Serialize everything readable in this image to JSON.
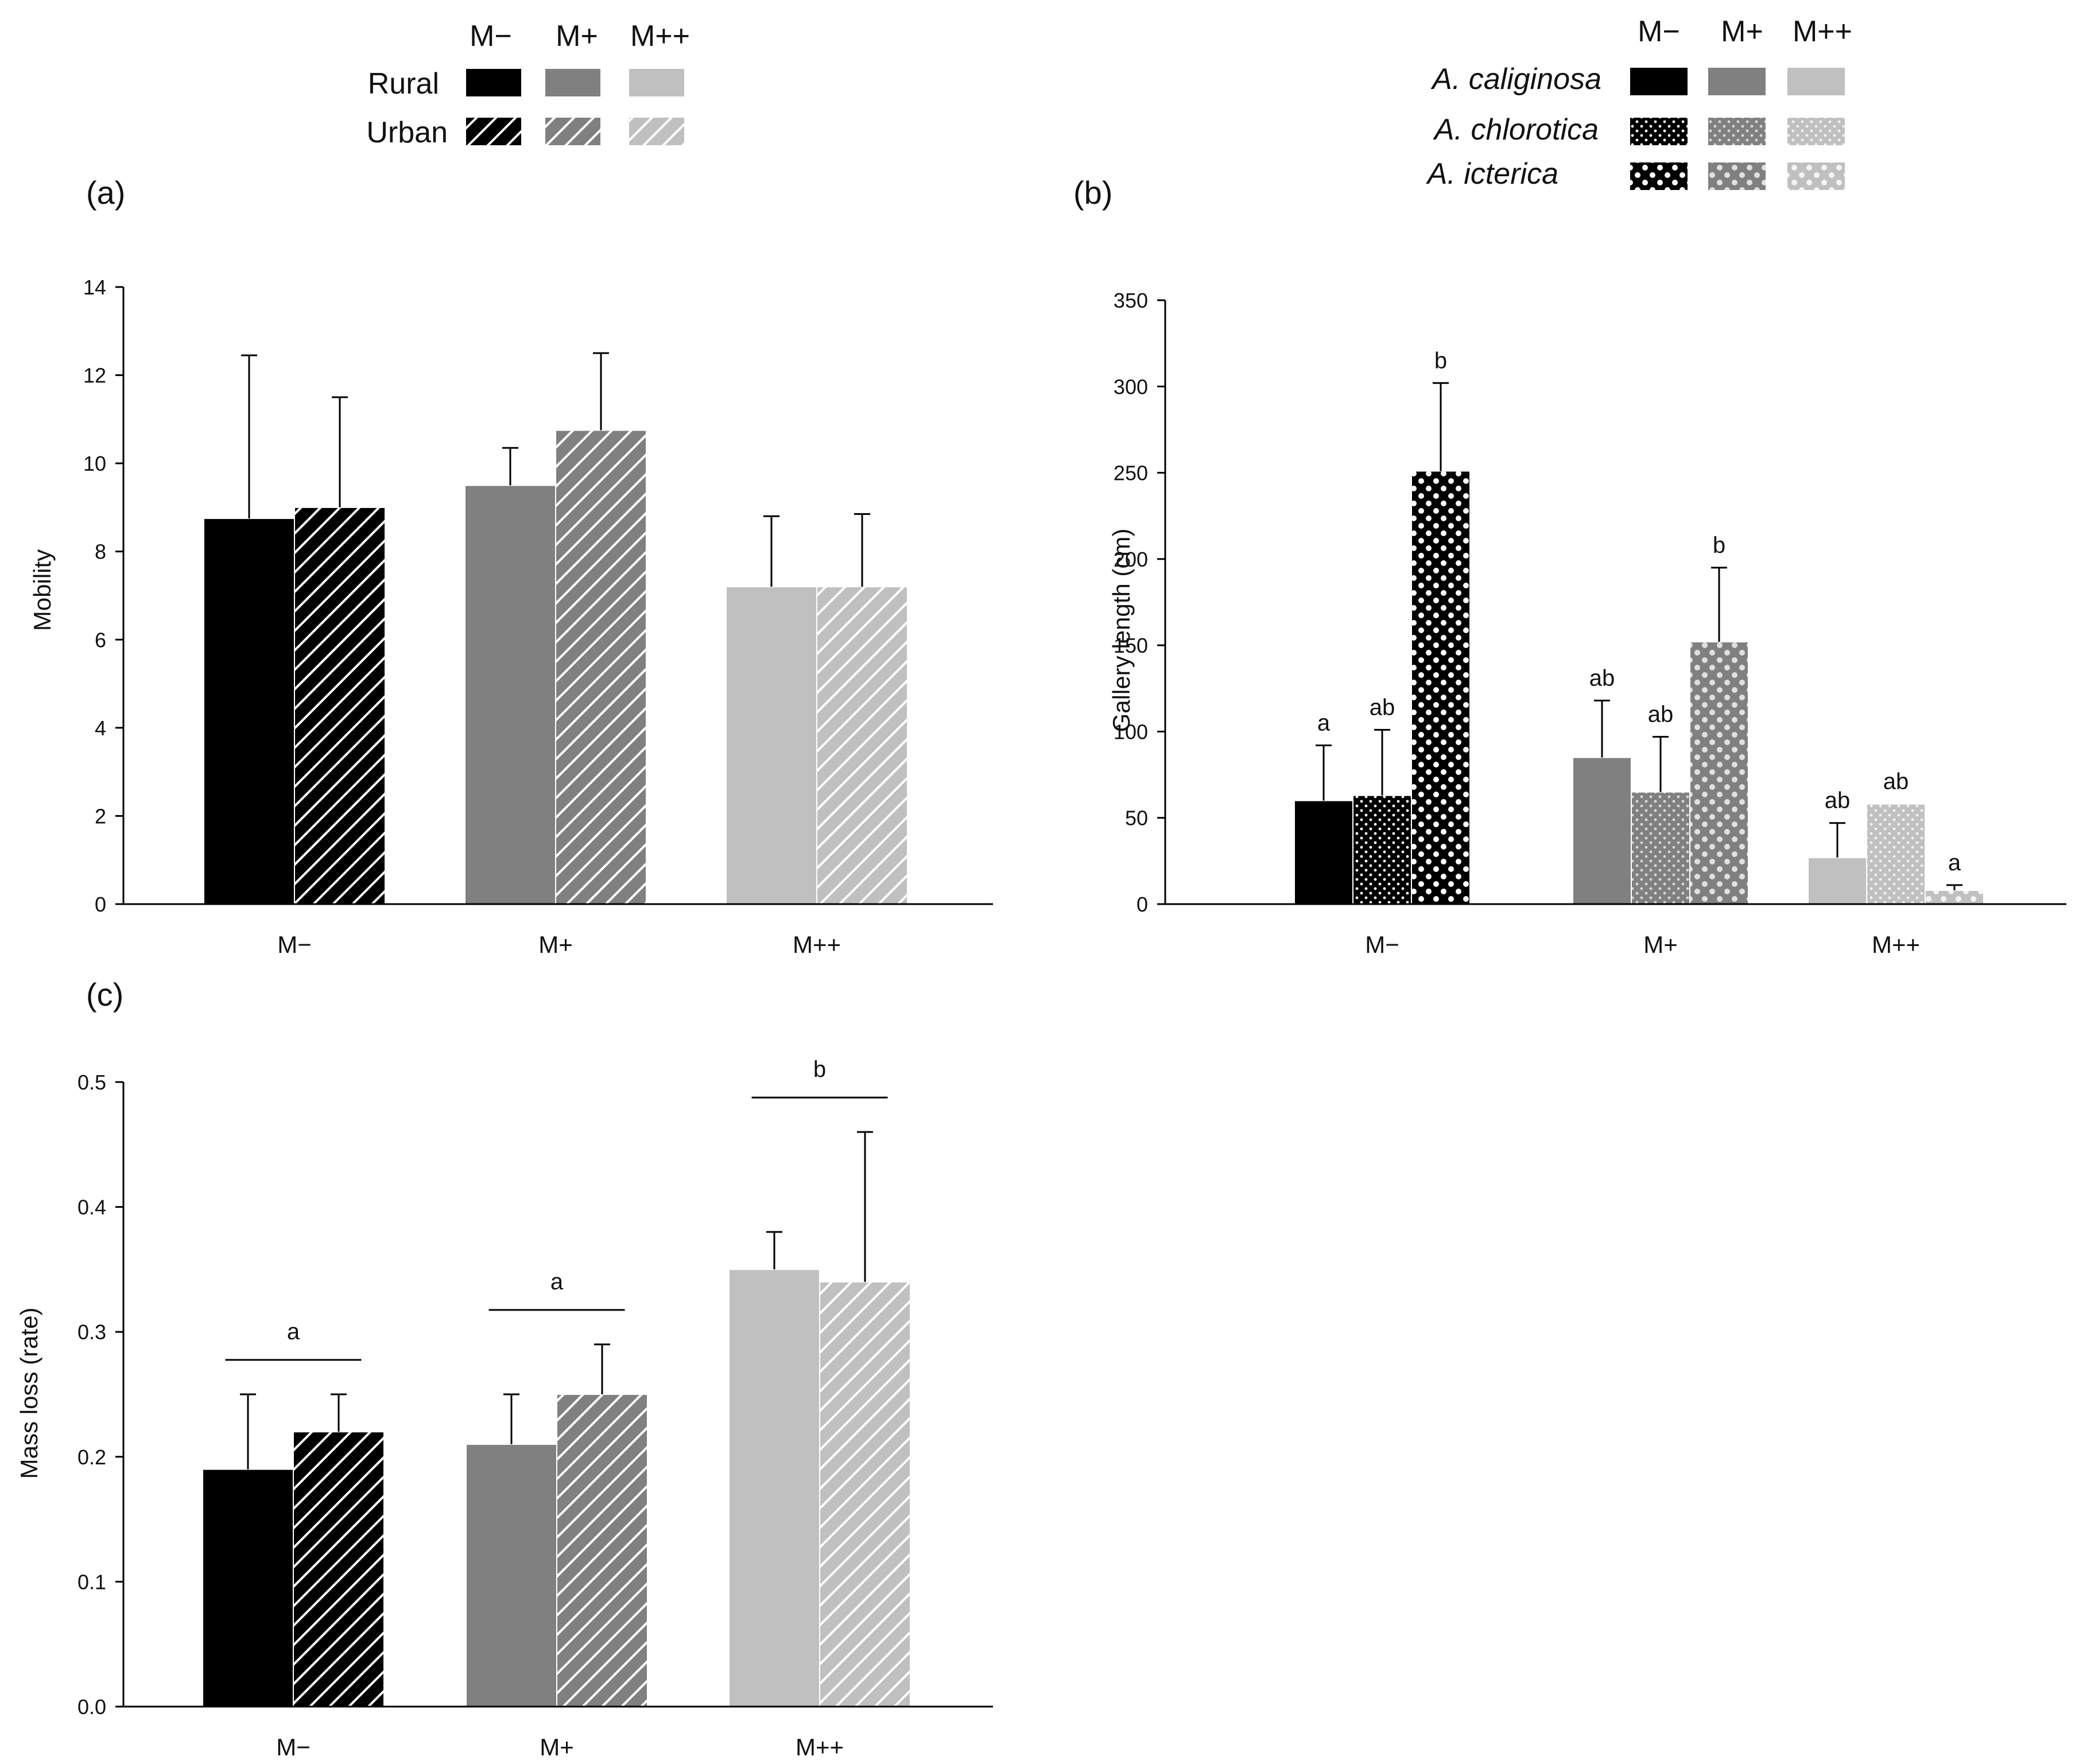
{
  "panels": {
    "a": {
      "label": "(a)"
    },
    "b": {
      "label": "(b)"
    },
    "c": {
      "label": "(c)"
    }
  },
  "legend_a": {
    "headers": [
      "M−",
      "M+",
      "M++"
    ],
    "rows": [
      "Rural",
      "Urban"
    ]
  },
  "legend_b": {
    "headers": [
      "M−",
      "M+",
      "M++"
    ],
    "rows": [
      "A. caliginosa",
      "A. chlorotica",
      "A. icterica"
    ]
  },
  "colors": {
    "M-": "#000000",
    "M+": "#808080",
    "M++": "#c0c0c0",
    "axis": "#000000",
    "background": "#ffffff"
  },
  "chart_data": [
    {
      "id": "a",
      "type": "bar",
      "title": "(a)",
      "xlabel": "",
      "ylabel": "Mobility",
      "ylim": [
        0,
        14
      ],
      "yticks": [
        0,
        2,
        4,
        6,
        8,
        10,
        12,
        14
      ],
      "categories": [
        "M−",
        "M+",
        "M++"
      ],
      "series": [
        {
          "name": "Rural",
          "pattern": "solid",
          "values": [
            8.75,
            9.5,
            7.2
          ],
          "errors": [
            3.7,
            0.85,
            1.6
          ]
        },
        {
          "name": "Urban",
          "pattern": "hatch",
          "values": [
            9.0,
            10.75,
            7.2
          ],
          "errors": [
            2.5,
            1.75,
            1.65
          ]
        }
      ]
    },
    {
      "id": "b",
      "type": "bar",
      "title": "(b)",
      "xlabel": "",
      "ylabel": "Gallery length (cm)",
      "ylim": [
        0,
        350
      ],
      "yticks": [
        0,
        50,
        100,
        150,
        200,
        250,
        300,
        350
      ],
      "categories": [
        "M−",
        "M+",
        "M++"
      ],
      "series": [
        {
          "name": "A. caliginosa",
          "pattern": "solid",
          "values": [
            60,
            85,
            27
          ],
          "errors": [
            32,
            33,
            20
          ],
          "labels": [
            "a",
            "ab",
            "ab"
          ]
        },
        {
          "name": "A. chlorotica",
          "pattern": "dots",
          "values": [
            63,
            65,
            58
          ],
          "errors": [
            38,
            32,
            0
          ],
          "labels": [
            "ab",
            "ab",
            "ab"
          ]
        },
        {
          "name": "A. icterica",
          "pattern": "spots",
          "values": [
            251,
            152,
            8
          ],
          "errors": [
            51,
            43,
            3
          ],
          "labels": [
            "b",
            "b",
            "a"
          ]
        }
      ]
    },
    {
      "id": "c",
      "type": "bar",
      "title": "(c)",
      "xlabel": "",
      "ylabel": "Mass loss (rate)",
      "ylim": [
        0,
        0.5
      ],
      "yticks": [
        "0.0",
        "0.1",
        "0.2",
        "0.3",
        "0.4",
        "0.5"
      ],
      "categories": [
        "M−",
        "M+",
        "M++"
      ],
      "series": [
        {
          "name": "Rural",
          "pattern": "solid",
          "values": [
            0.19,
            0.21,
            0.35
          ],
          "errors": [
            0.06,
            0.04,
            0.03
          ]
        },
        {
          "name": "Urban",
          "pattern": "hatch",
          "values": [
            0.22,
            0.25,
            0.34
          ],
          "errors": [
            0.03,
            0.04,
            0.12
          ]
        }
      ],
      "group_labels": [
        "a",
        "a",
        "b"
      ]
    }
  ]
}
